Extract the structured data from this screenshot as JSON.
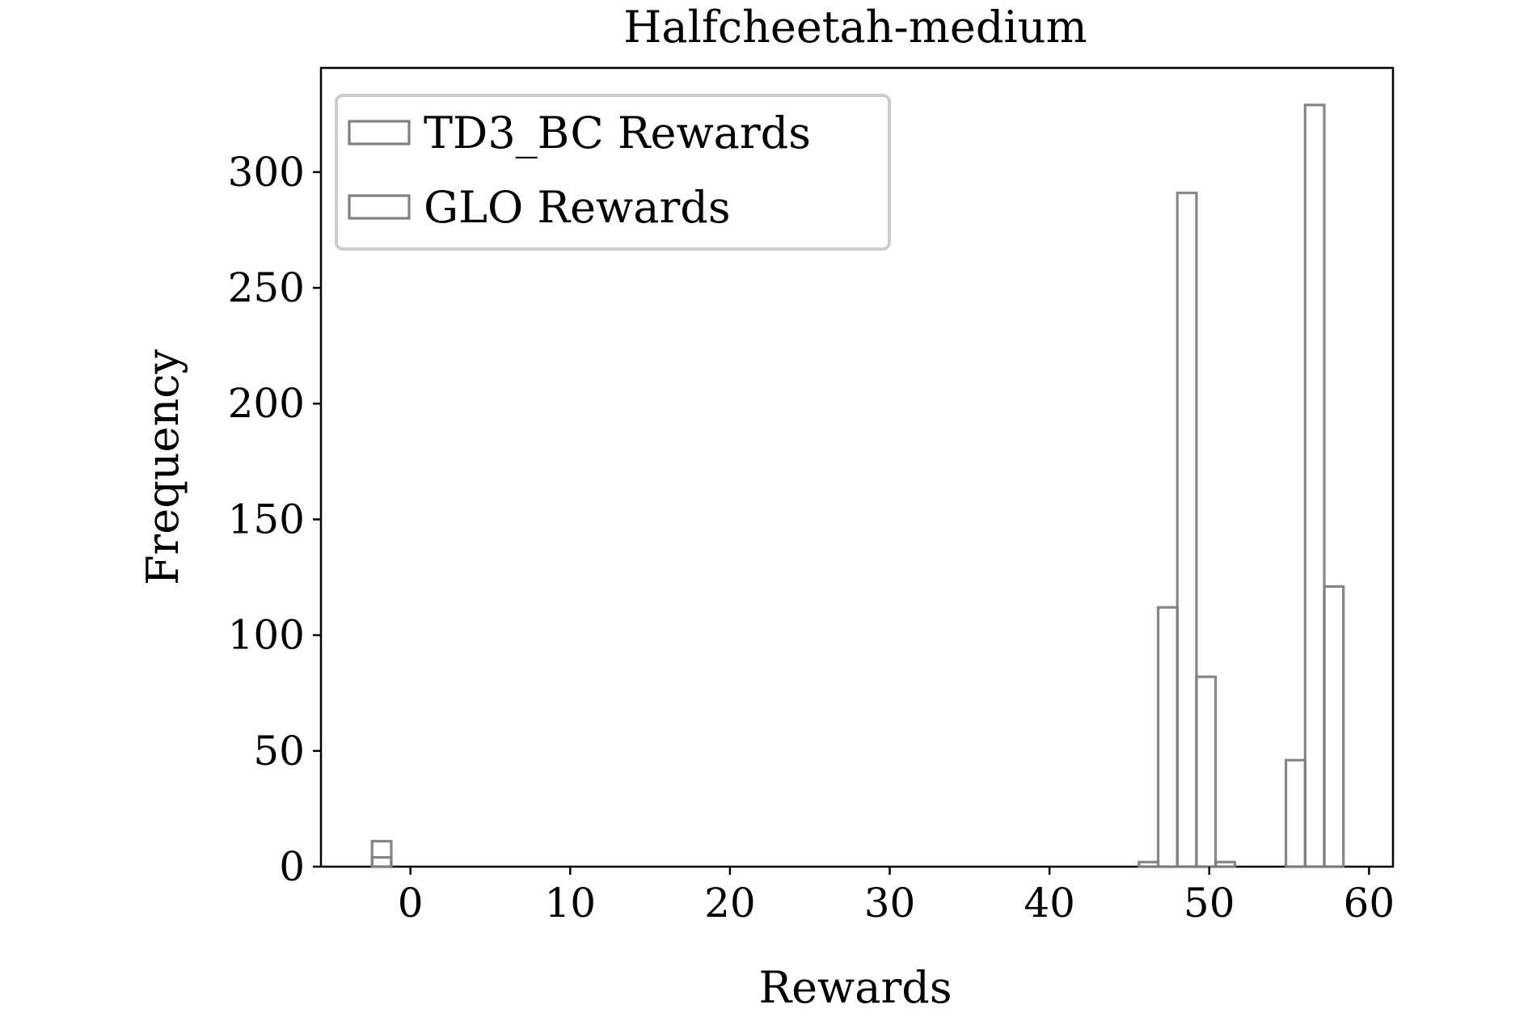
{
  "chart_data": {
    "type": "histogram",
    "title": "Halfcheetah-medium",
    "xlabel": "Rewards",
    "ylabel": "Frequency",
    "xlim": [
      -5.6,
      61.5
    ],
    "ylim": [
      0,
      345
    ],
    "xticks": [
      0,
      10,
      20,
      30,
      40,
      50,
      60
    ],
    "yticks": [
      0,
      50,
      100,
      150,
      200,
      250,
      300
    ],
    "grid": false,
    "legend_position": "top-left",
    "series": [
      {
        "name": "TD3_BC Rewards",
        "color": "#808080",
        "bins": [
          {
            "x0": -2.4,
            "x1": -1.2,
            "count": 11
          },
          {
            "x0": -1.2,
            "x1": 0.0,
            "count": 0
          },
          {
            "x0": 45.6,
            "x1": 46.8,
            "count": 2
          },
          {
            "x0": 46.8,
            "x1": 48.0,
            "count": 112
          },
          {
            "x0": 48.0,
            "x1": 49.2,
            "count": 291
          },
          {
            "x0": 49.2,
            "x1": 50.4,
            "count": 82
          },
          {
            "x0": 50.4,
            "x1": 51.6,
            "count": 2
          }
        ]
      },
      {
        "name": "GLO Rewards",
        "color": "#808080",
        "bins": [
          {
            "x0": -2.4,
            "x1": -1.2,
            "count": 4
          },
          {
            "x0": 54.8,
            "x1": 56.0,
            "count": 46
          },
          {
            "x0": 56.0,
            "x1": 57.2,
            "count": 329
          },
          {
            "x0": 57.2,
            "x1": 58.4,
            "count": 121
          }
        ]
      }
    ]
  }
}
